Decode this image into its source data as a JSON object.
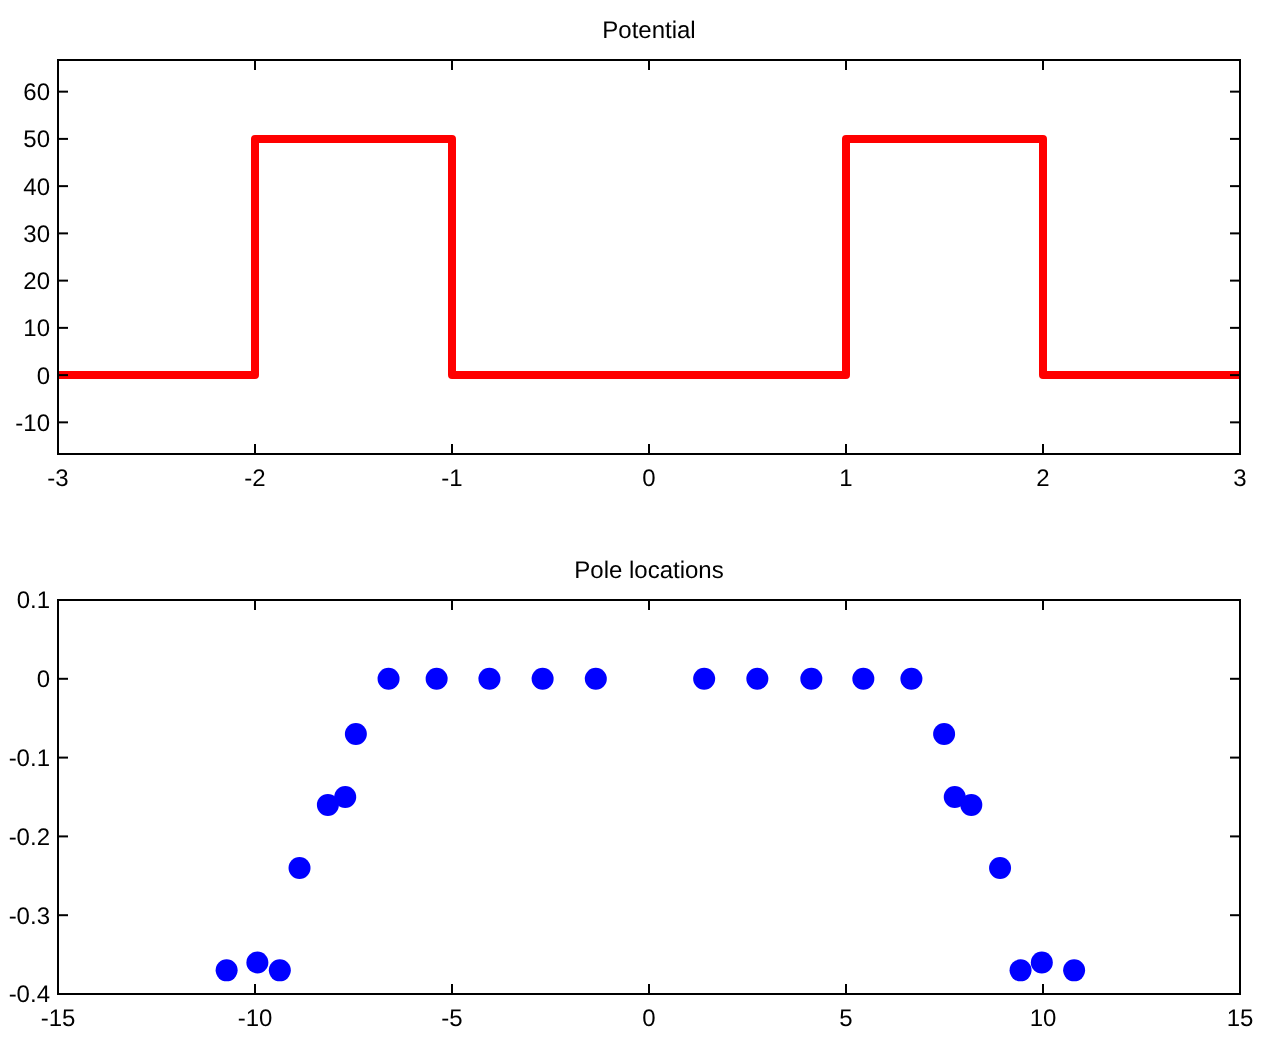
{
  "chart_data": [
    {
      "type": "line",
      "title": "Potential",
      "x": [
        -3,
        -2,
        -2,
        -1,
        -1,
        1,
        1,
        2,
        2,
        3
      ],
      "series": [
        {
          "color": "#ff0000",
          "values": [
            0,
            0,
            50,
            50,
            0,
            0,
            50,
            50,
            0,
            0
          ]
        }
      ],
      "xlim": [
        -3,
        3
      ],
      "xticks": [
        -3,
        -2,
        -1,
        0,
        1,
        2,
        3
      ],
      "ylim": [
        -16.7,
        66.7
      ],
      "yticks": [
        -10,
        0,
        10,
        20,
        30,
        40,
        50,
        60
      ],
      "grid": false,
      "marker": "none",
      "line_style": "solid"
    },
    {
      "type": "scatter",
      "title": "Pole locations",
      "x": [
        -10.72,
        -9.94,
        -9.37,
        -8.87,
        -8.15,
        -7.71,
        -7.44,
        -6.61,
        -5.39,
        -4.05,
        -2.7,
        -1.35,
        1.4,
        2.75,
        4.12,
        5.44,
        6.66,
        7.49,
        7.76,
        8.18,
        8.91,
        9.43,
        9.97,
        10.79
      ],
      "series": [
        {
          "color": "#0000ff",
          "values": [
            -0.37,
            -0.36,
            -0.37,
            -0.24,
            -0.16,
            -0.15,
            -0.07,
            0,
            0,
            0,
            0,
            0,
            0,
            0,
            0,
            0,
            0,
            -0.07,
            -0.15,
            -0.16,
            -0.24,
            -0.37,
            -0.36,
            -0.37
          ]
        }
      ],
      "xlim": [
        -15,
        15
      ],
      "xticks": [
        -15,
        -10,
        -5,
        0,
        5,
        10,
        15
      ],
      "ylim": [
        -0.4,
        0.1
      ],
      "yticks": [
        -0.4,
        -0.3,
        -0.2,
        -0.1,
        0,
        0.1
      ],
      "grid": false,
      "marker": "circle"
    }
  ]
}
